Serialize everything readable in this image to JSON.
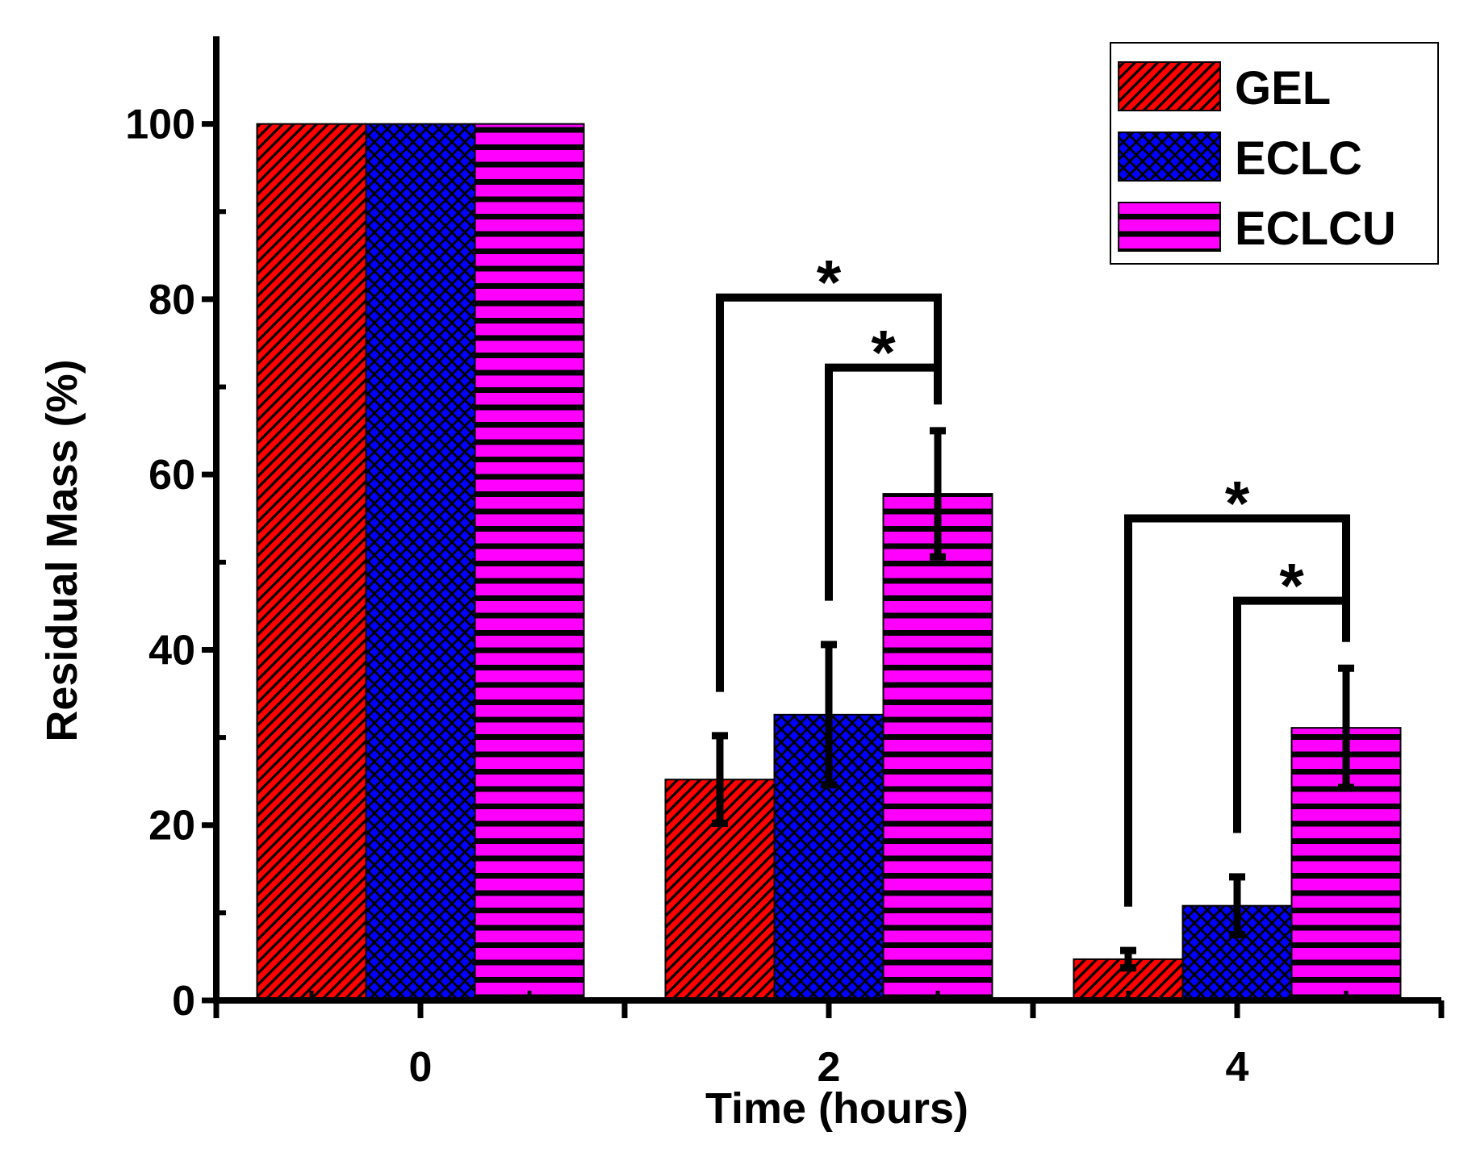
{
  "chart_data": {
    "type": "bar",
    "categories": [
      "0",
      "2",
      "4"
    ],
    "series": [
      {
        "name": "GEL",
        "values": [
          100,
          25.2,
          4.7
        ],
        "errors": [
          0,
          5,
          1
        ],
        "color": "#ff0000",
        "pattern": "diagonal"
      },
      {
        "name": "ECLC",
        "values": [
          100,
          32.6,
          10.8
        ],
        "errors": [
          0,
          8,
          3.3
        ],
        "color": "#0000ff",
        "pattern": "crosshatch"
      },
      {
        "name": "ECLCU",
        "values": [
          100,
          57.8,
          31.1
        ],
        "errors": [
          0,
          7.2,
          6.8
        ],
        "color": "#ff00ff",
        "pattern": "horizontal"
      }
    ],
    "significance": [
      {
        "category": "2",
        "from": "GEL",
        "to": "ECLCU",
        "label": "*",
        "level": 80.2
      },
      {
        "category": "2",
        "from": "ECLC",
        "to": "ECLCU",
        "label": "*",
        "level": 72.2
      },
      {
        "category": "4",
        "from": "GEL",
        "to": "ECLCU",
        "label": "*",
        "level": 55
      },
      {
        "category": "4",
        "from": "ECLC",
        "to": "ECLCU",
        "label": "*",
        "level": 45.6
      }
    ],
    "xlabel": "Time (hours)",
    "ylabel": "Residual Mass (%)",
    "ylim": [
      0,
      110
    ],
    "yticks": [
      "0",
      "20",
      "40",
      "60",
      "80",
      "100"
    ],
    "legend_position": "top-right",
    "grid": false
  }
}
